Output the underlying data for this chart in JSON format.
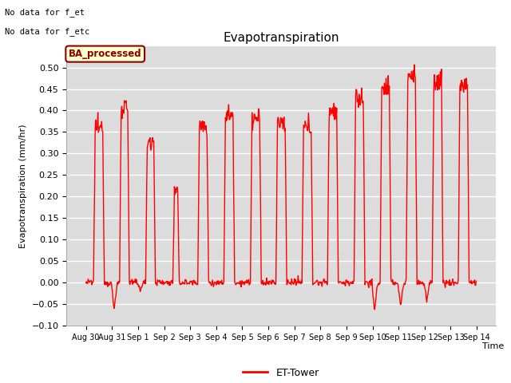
{
  "title": "Evapotranspiration",
  "xlabel": "Time",
  "ylabel": "Evapotranspiration (mm/hr)",
  "ylim": [
    -0.1,
    0.55
  ],
  "yticks": [
    -0.1,
    -0.05,
    0.0,
    0.05,
    0.1,
    0.15,
    0.2,
    0.25,
    0.3,
    0.35,
    0.4,
    0.45,
    0.5
  ],
  "line_color": "#ff0000",
  "line_width": 1.0,
  "bg_color": "#dcdcdc",
  "fig_bg_color": "#ffffff",
  "no_data_text": [
    "No data for f_et",
    "No data for f_etc"
  ],
  "legend_box_label": "BA_processed",
  "legend_line_label": "ET-Tower",
  "legend_box_color": "#ffffcc",
  "legend_box_edge_color": "#8b0000",
  "legend_box_text_color": "#8b0000",
  "num_days": 15,
  "daily_peaks": [
    0.36,
    0.41,
    0.33,
    0.21,
    0.36,
    0.39,
    0.38,
    0.37,
    0.36,
    0.4,
    0.43,
    0.45,
    0.48,
    0.47,
    0.46
  ],
  "daily_negatives": [
    0.0,
    -0.06,
    -0.015,
    -0.01,
    -0.01,
    -0.01,
    -0.01,
    -0.01,
    -0.01,
    0.0,
    0.0,
    -0.06,
    -0.05,
    -0.04,
    0.0
  ],
  "peak_hours": [
    12.0,
    11.5,
    11.5,
    11.0,
    12.0,
    12.0,
    12.5,
    12.0,
    12.0,
    11.5,
    12.0,
    12.0,
    12.0,
    12.0,
    12.0
  ],
  "peak_widths": [
    5.0,
    4.5,
    4.5,
    3.0,
    5.0,
    5.0,
    5.0,
    5.0,
    5.0,
    5.0,
    5.0,
    5.0,
    5.0,
    5.0,
    5.0
  ]
}
